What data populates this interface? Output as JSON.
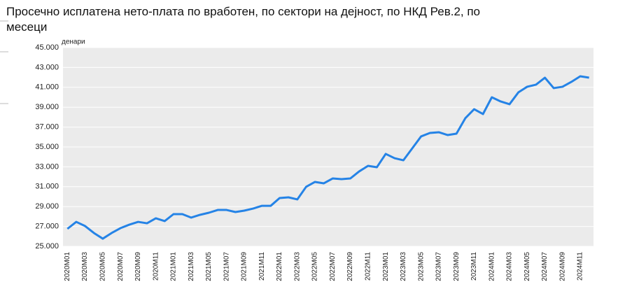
{
  "chart_data": {
    "type": "line",
    "title": "Просечно исплатена нето-плата по вработен, по сектори на дејност, по НКД Рев.2, по месеци",
    "title_lines": [
      "Просечно исплатена нето-плата по вработен, по сектори на дејност, по НКД Рев.2, по",
      "месеци"
    ],
    "y_label": "денари",
    "categories": [
      "2020M01",
      null,
      "2020M03",
      null,
      "2020M05",
      null,
      "2020M07",
      null,
      "2020M09",
      null,
      "2020M11",
      null,
      "2021M01",
      null,
      "2021M03",
      null,
      "2021M05",
      null,
      "2021M07",
      null,
      "2021M09",
      null,
      "2021M11",
      null,
      "2022M01",
      null,
      "2022M03",
      null,
      "2022M05",
      null,
      "2022M07",
      null,
      "2022M09",
      null,
      "2022M11",
      null,
      "2023M01",
      null,
      "2023M03",
      null,
      "2023M05",
      null,
      "2023M07",
      null,
      "2023M09",
      null,
      "2023M11",
      null,
      "2024M01",
      null,
      "2024M03",
      null,
      "2024M05",
      null,
      "2024M07",
      null,
      "2024M09",
      null,
      "2024M11",
      null
    ],
    "values": [
      26760,
      27460,
      27040,
      26340,
      25770,
      26340,
      26830,
      27180,
      27460,
      27320,
      27820,
      27540,
      28240,
      28240,
      27890,
      28170,
      28380,
      28660,
      28660,
      28450,
      28590,
      28800,
      29080,
      29080,
      29860,
      29930,
      29720,
      30990,
      31480,
      31340,
      31830,
      31760,
      31830,
      32540,
      33100,
      32960,
      34300,
      33870,
      33660,
      34860,
      36060,
      36410,
      36480,
      36200,
      36340,
      37890,
      38800,
      38310,
      40000,
      39580,
      39300,
      40490,
      41060,
      41270,
      41970,
      40920,
      41060,
      41550,
      42110,
      41970
    ],
    "color": "#2583e6",
    "ylim": [
      25000,
      45000
    ],
    "yticks": [
      {
        "value": 25000,
        "label": "25.000"
      },
      {
        "value": 27000,
        "label": "27.000"
      },
      {
        "value": 29000,
        "label": "29.000"
      },
      {
        "value": 31000,
        "label": "31.000"
      },
      {
        "value": 33000,
        "label": "33.000"
      },
      {
        "value": 35000,
        "label": "35.000"
      },
      {
        "value": 37000,
        "label": "37.000"
      },
      {
        "value": 39000,
        "label": "39.000"
      },
      {
        "value": 41000,
        "label": "41.000"
      },
      {
        "value": 43000,
        "label": "43.000"
      },
      {
        "value": 45000,
        "label": "45.000"
      }
    ],
    "grid": true
  }
}
